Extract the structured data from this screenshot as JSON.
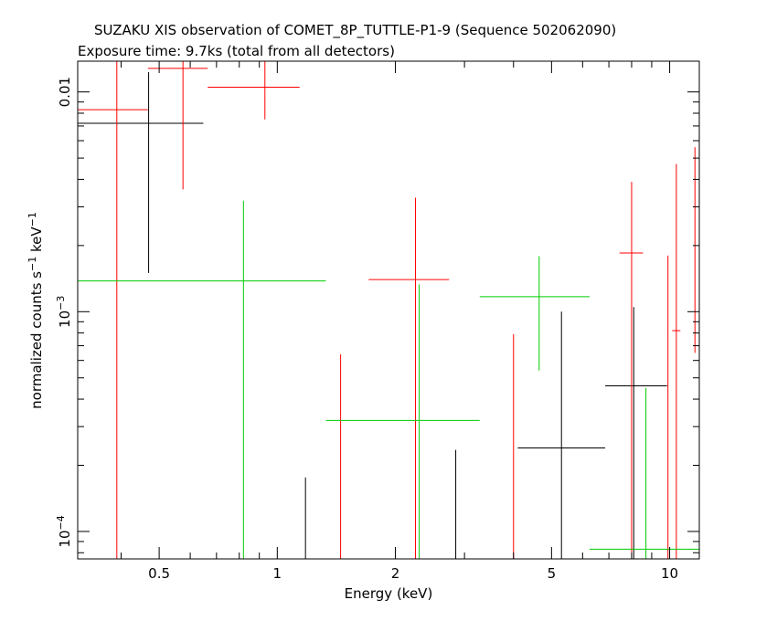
{
  "header": {
    "title": "SUZAKU XIS observation of COMET_8P_TUTTLE-P1-9 (Sequence 502062090)",
    "subtitle": "Exposure time: 9.7ks (total from all detectors)"
  },
  "chart_data": {
    "type": "scatter",
    "title": "SUZAKU XIS observation of COMET_8P_TUTTLE-P1-9 (Sequence 502062090)",
    "subtitle": "Exposure time: 9.7ks (total from all detectors)",
    "xlabel": "Energy (keV)",
    "ylabel_main": "normalized counts s",
    "ylabel_sup1": "−1",
    "ylabel_mid": " keV",
    "ylabel_sup2": "−1",
    "x_scale": "log",
    "y_scale": "log",
    "xlim": [
      0.31,
      11.9
    ],
    "ylim": [
      7.5e-05,
      0.0138
    ],
    "grid": false,
    "x_ticks": [
      {
        "value": 0.5,
        "label": "0.5"
      },
      {
        "value": 1,
        "label": "1"
      },
      {
        "value": 2,
        "label": "2"
      },
      {
        "value": 5,
        "label": "5"
      },
      {
        "value": 10,
        "label": "10"
      }
    ],
    "y_ticks": [
      {
        "value": 0.0001,
        "base": "10",
        "exp": "−4"
      },
      {
        "value": 0.001,
        "base": "10",
        "exp": "−3"
      },
      {
        "value": 0.01,
        "base": "0.01",
        "exp": ""
      }
    ],
    "series": [
      {
        "color": "#000000",
        "points": [
          {
            "x": 0.47,
            "x_lo": 0.31,
            "x_hi": 0.648,
            "y": 0.0072,
            "y_lo": 0.0015,
            "y_hi": 0.0123
          },
          {
            "x": 1.18,
            "y_lo": 7.5e-05,
            "y_hi": 0.000176
          },
          {
            "x": 2.85,
            "y_lo": 7.5e-05,
            "y_hi": 0.000235
          },
          {
            "x": 5.3,
            "x_lo": 4.1,
            "x_hi": 6.85,
            "y": 0.00024,
            "y_lo": 7.5e-05,
            "y_hi": 0.001
          },
          {
            "x": 8.1,
            "x_lo": 6.85,
            "x_hi": 9.85,
            "y": 0.00046,
            "y_lo": 7.5e-05,
            "y_hi": 0.00105
          }
        ]
      },
      {
        "color": "#ff0000",
        "points": [
          {
            "x": 0.39,
            "x_lo": 0.31,
            "x_hi": 0.468,
            "y": 0.0083,
            "y_lo": 7.5e-05,
            "y_hi": 0.0138
          },
          {
            "x": 0.575,
            "x_lo": 0.468,
            "x_hi": 0.665,
            "y": 0.0128,
            "y_lo": 0.0036,
            "y_hi": 0.0138
          },
          {
            "x": 0.93,
            "x_lo": 0.665,
            "x_hi": 1.14,
            "y": 0.0105,
            "y_lo": 0.0075,
            "y_hi": 0.0138
          },
          {
            "x": 1.45,
            "y_lo": 7.5e-05,
            "y_hi": 0.00064
          },
          {
            "x": 2.25,
            "x_lo": 1.71,
            "x_hi": 2.74,
            "y": 0.0014,
            "y_lo": 7.5e-05,
            "y_hi": 0.0033
          },
          {
            "x": 4.0,
            "y_lo": 7.5e-05,
            "y_hi": 0.00079
          },
          {
            "x": 8.0,
            "x_lo": 7.45,
            "x_hi": 8.55,
            "y": 0.00185,
            "y_lo": 7.5e-05,
            "y_hi": 0.0039
          },
          {
            "x": 9.9,
            "y_lo": 7.5e-05,
            "y_hi": 0.0018
          },
          {
            "x": 10.4,
            "x_lo": 10.15,
            "x_hi": 10.65,
            "y": 0.00082,
            "y_lo": 7.5e-05,
            "y_hi": 0.0047
          },
          {
            "x": 11.6,
            "y_lo": 0.00065,
            "y_hi": 0.0056
          }
        ]
      },
      {
        "color": "#00cc00",
        "points": [
          {
            "x": 0.82,
            "x_lo": 0.31,
            "x_hi": 1.33,
            "y": 0.00138,
            "y_lo": 7.5e-05,
            "y_hi": 0.0032
          },
          {
            "x": 2.3,
            "x_lo": 1.33,
            "x_hi": 3.28,
            "y": 0.00032,
            "y_lo": 7.5e-05,
            "y_hi": 0.00133
          },
          {
            "x": 4.65,
            "x_lo": 3.28,
            "x_hi": 6.25,
            "y": 0.00117,
            "y_lo": 0.00054,
            "y_hi": 0.00179
          },
          {
            "x": 8.7,
            "x_lo": 6.25,
            "x_hi": 11.9,
            "y": 8.3e-05,
            "y_lo": 7.5e-05,
            "y_hi": 0.00045
          }
        ]
      }
    ]
  }
}
